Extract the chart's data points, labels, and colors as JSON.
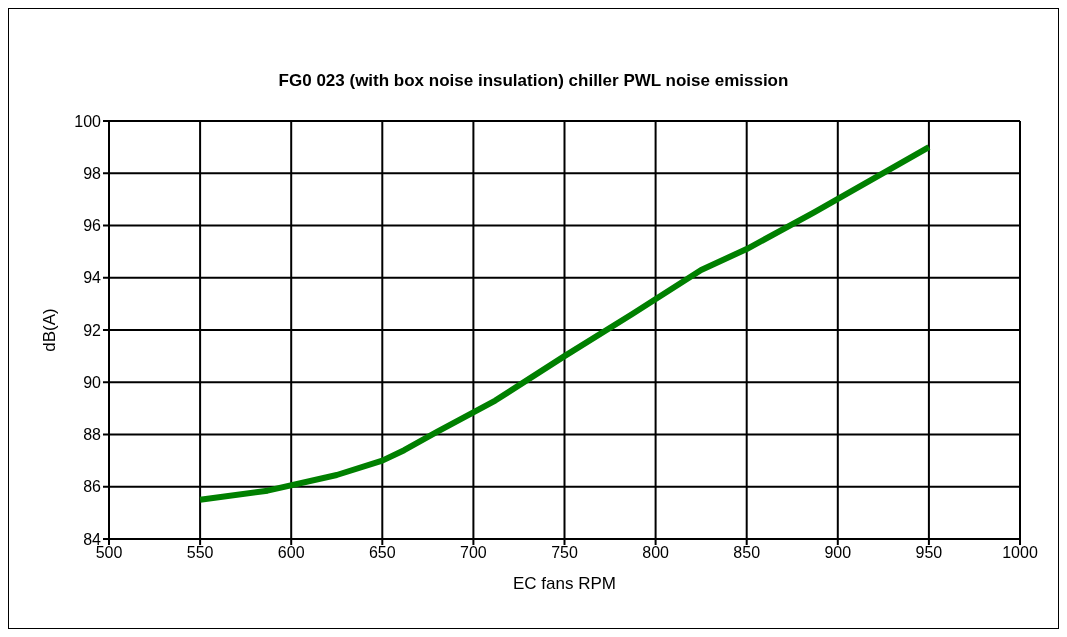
{
  "chart_data": {
    "type": "line",
    "title": "FG0 023 (with box noise insulation) chiller PWL noise emission",
    "xlabel": "EC fans RPM",
    "ylabel": "dB(A)",
    "x": [
      550,
      587,
      625,
      650,
      662,
      680,
      712,
      750,
      787,
      825,
      850,
      887,
      950
    ],
    "series": [
      {
        "color": "#008000",
        "values": [
          85.5,
          85.85,
          86.45,
          87.0,
          87.4,
          88.1,
          89.3,
          91.0,
          92.6,
          94.3,
          95.1,
          96.5,
          99.0
        ]
      }
    ],
    "xlim": [
      500,
      1000
    ],
    "xticks": [
      500,
      550,
      600,
      650,
      700,
      750,
      800,
      850,
      900,
      950,
      1000
    ],
    "ylim": [
      84,
      100
    ],
    "yticks": [
      84,
      86,
      88,
      90,
      92,
      94,
      96,
      98,
      100
    ],
    "grid": true,
    "legend": false,
    "marker": "none",
    "line_style": "solid"
  }
}
